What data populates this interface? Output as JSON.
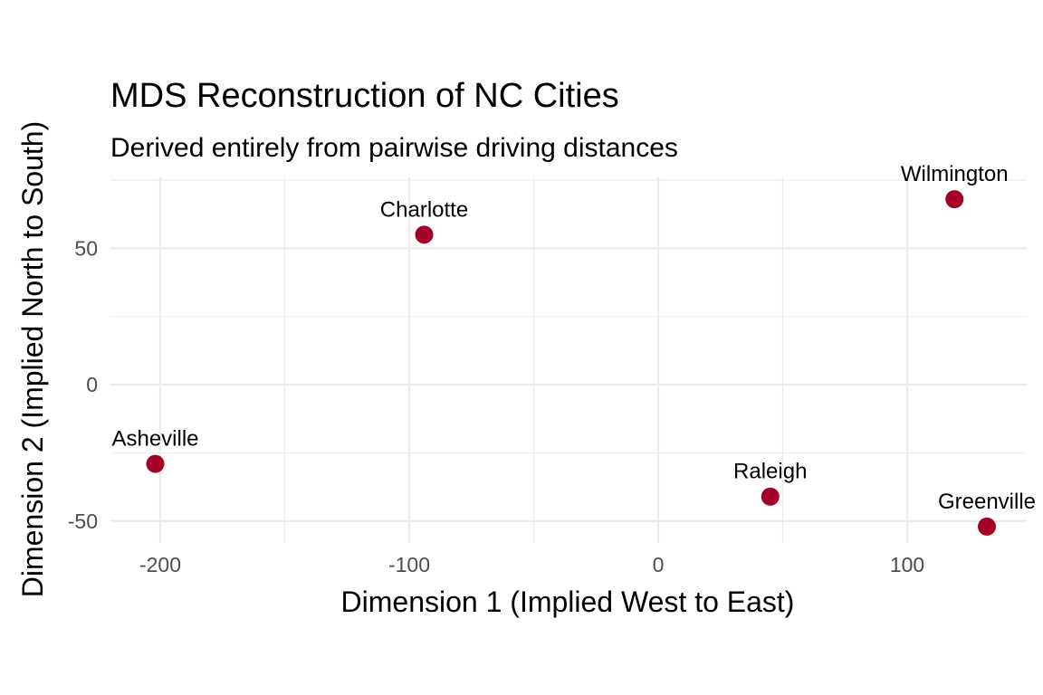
{
  "chart_data": {
    "type": "scatter",
    "title": "MDS Reconstruction of NC Cities",
    "subtitle": "Derived entirely from pairwise driving distances",
    "xlabel": "Dimension 1 (Implied West to East)",
    "ylabel": "Dimension 2 (Implied North to South)",
    "xlim": [
      -220,
      148
    ],
    "ylim": [
      -58,
      76
    ],
    "x_ticks": [
      -200,
      -100,
      0,
      100
    ],
    "x_tick_labels": [
      "-200",
      "-100",
      "0",
      "100"
    ],
    "y_ticks": [
      -50,
      0,
      50
    ],
    "y_tick_labels": [
      "-50",
      "0",
      "50"
    ],
    "x_minor": [
      -150,
      -50,
      50
    ],
    "y_minor": [
      -25,
      25,
      75
    ],
    "grid": true,
    "point_color": "#a50026",
    "points": [
      {
        "label": "Asheville",
        "x": -202,
        "y": -29
      },
      {
        "label": "Charlotte",
        "x": -94,
        "y": 55
      },
      {
        "label": "Raleigh",
        "x": 45,
        "y": -41
      },
      {
        "label": "Wilmington",
        "x": 119,
        "y": 68
      },
      {
        "label": "Greenville",
        "x": 132,
        "y": -52
      }
    ]
  }
}
